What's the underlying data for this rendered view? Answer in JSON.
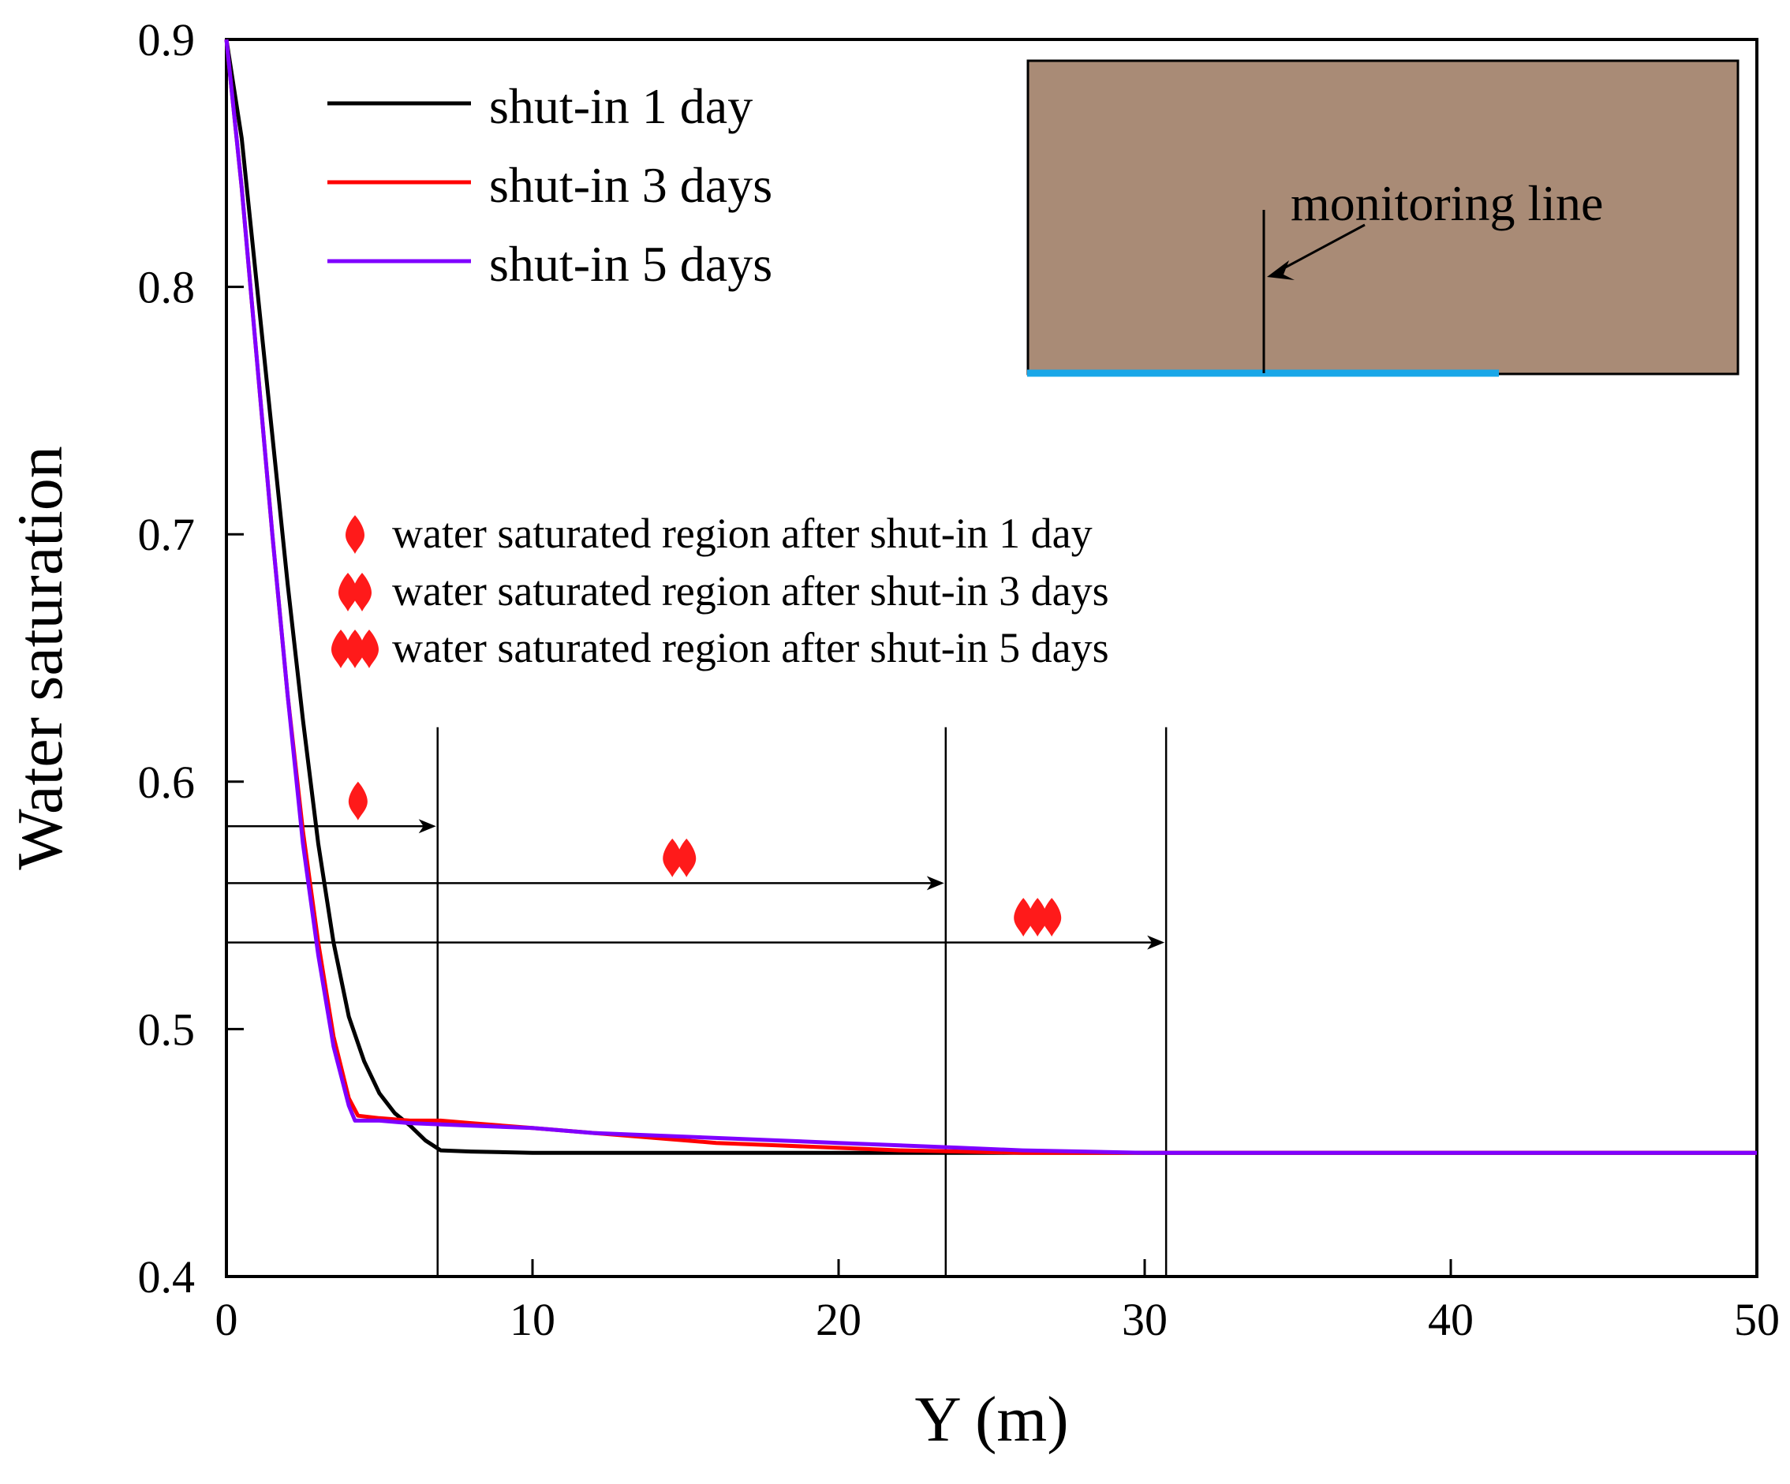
{
  "chart_data": {
    "type": "line",
    "xlabel": "Y (m)",
    "ylabel": "Water saturation",
    "xlim": [
      0,
      50
    ],
    "ylim": [
      0.4,
      0.9
    ],
    "xticks": [
      "0",
      "10",
      "20",
      "30",
      "40",
      "50"
    ],
    "yticks": [
      "0.4",
      "0.5",
      "0.6",
      "0.7",
      "0.8",
      "0.9"
    ],
    "legend_position": "top-left",
    "series": [
      {
        "name": "shut-in 1 day",
        "color": "#000000",
        "points": [
          [
            0,
            0.9
          ],
          [
            0.5,
            0.86
          ],
          [
            1,
            0.8
          ],
          [
            1.5,
            0.74
          ],
          [
            2,
            0.68
          ],
          [
            2.5,
            0.625
          ],
          [
            3,
            0.575
          ],
          [
            3.5,
            0.535
          ],
          [
            4,
            0.505
          ],
          [
            4.5,
            0.487
          ],
          [
            5,
            0.474
          ],
          [
            5.5,
            0.466
          ],
          [
            6,
            0.461
          ],
          [
            6.5,
            0.455
          ],
          [
            7,
            0.451
          ],
          [
            8,
            0.4505
          ],
          [
            10,
            0.45
          ],
          [
            20,
            0.45
          ],
          [
            30,
            0.45
          ],
          [
            40,
            0.45
          ],
          [
            50,
            0.45
          ]
        ]
      },
      {
        "name": "shut-in 3 days",
        "color": "#ff0000",
        "points": [
          [
            0,
            0.9
          ],
          [
            0.5,
            0.84
          ],
          [
            1,
            0.77
          ],
          [
            1.5,
            0.7
          ],
          [
            2,
            0.635
          ],
          [
            2.5,
            0.58
          ],
          [
            3,
            0.535
          ],
          [
            3.5,
            0.497
          ],
          [
            4,
            0.472
          ],
          [
            4.3,
            0.465
          ],
          [
            5,
            0.464
          ],
          [
            6,
            0.463
          ],
          [
            7,
            0.463
          ],
          [
            8,
            0.462
          ],
          [
            9,
            0.461
          ],
          [
            10,
            0.46
          ],
          [
            12,
            0.458
          ],
          [
            14,
            0.456
          ],
          [
            16,
            0.454
          ],
          [
            18,
            0.453
          ],
          [
            20,
            0.452
          ],
          [
            22,
            0.451
          ],
          [
            24,
            0.4505
          ],
          [
            26,
            0.45
          ],
          [
            50,
            0.45
          ]
        ]
      },
      {
        "name": "shut-in 5 days",
        "color": "#7f00ff",
        "points": [
          [
            0,
            0.9
          ],
          [
            0.5,
            0.84
          ],
          [
            1,
            0.77
          ],
          [
            1.5,
            0.7
          ],
          [
            2,
            0.635
          ],
          [
            2.5,
            0.575
          ],
          [
            3,
            0.53
          ],
          [
            3.5,
            0.493
          ],
          [
            4,
            0.469
          ],
          [
            4.2,
            0.463
          ],
          [
            5,
            0.463
          ],
          [
            6,
            0.462
          ],
          [
            8,
            0.461
          ],
          [
            10,
            0.46
          ],
          [
            12,
            0.458
          ],
          [
            14,
            0.457
          ],
          [
            16,
            0.456
          ],
          [
            18,
            0.455
          ],
          [
            20,
            0.454
          ],
          [
            22,
            0.453
          ],
          [
            24,
            0.452
          ],
          [
            26,
            0.451
          ],
          [
            28,
            0.4505
          ],
          [
            30,
            0.45
          ],
          [
            50,
            0.45
          ]
        ]
      }
    ],
    "annotations": {
      "markers_legend": [
        {
          "label": "water saturated region after shut-in 1 day",
          "count": 1
        },
        {
          "label": "water saturated region after shut-in 3 days",
          "count": 2
        },
        {
          "label": "water saturated region after shut-in 5 days",
          "count": 3
        }
      ],
      "front_lines": [
        {
          "x": 6.9,
          "arrow_y": 0.582,
          "marker_count": 1,
          "marker_at": [
            4.3,
            0.593
          ]
        },
        {
          "x": 23.5,
          "arrow_y": 0.559,
          "marker_count": 2,
          "marker_at": [
            14.8,
            0.57
          ]
        },
        {
          "x": 30.7,
          "arrow_y": 0.535,
          "marker_count": 3,
          "marker_at": [
            26.5,
            0.546
          ]
        }
      ],
      "front_line_top": 0.622
    },
    "inset": {
      "label": "monitoring line",
      "fill_color": "#a98b76",
      "boundary_color": "#1aa7e8"
    }
  }
}
